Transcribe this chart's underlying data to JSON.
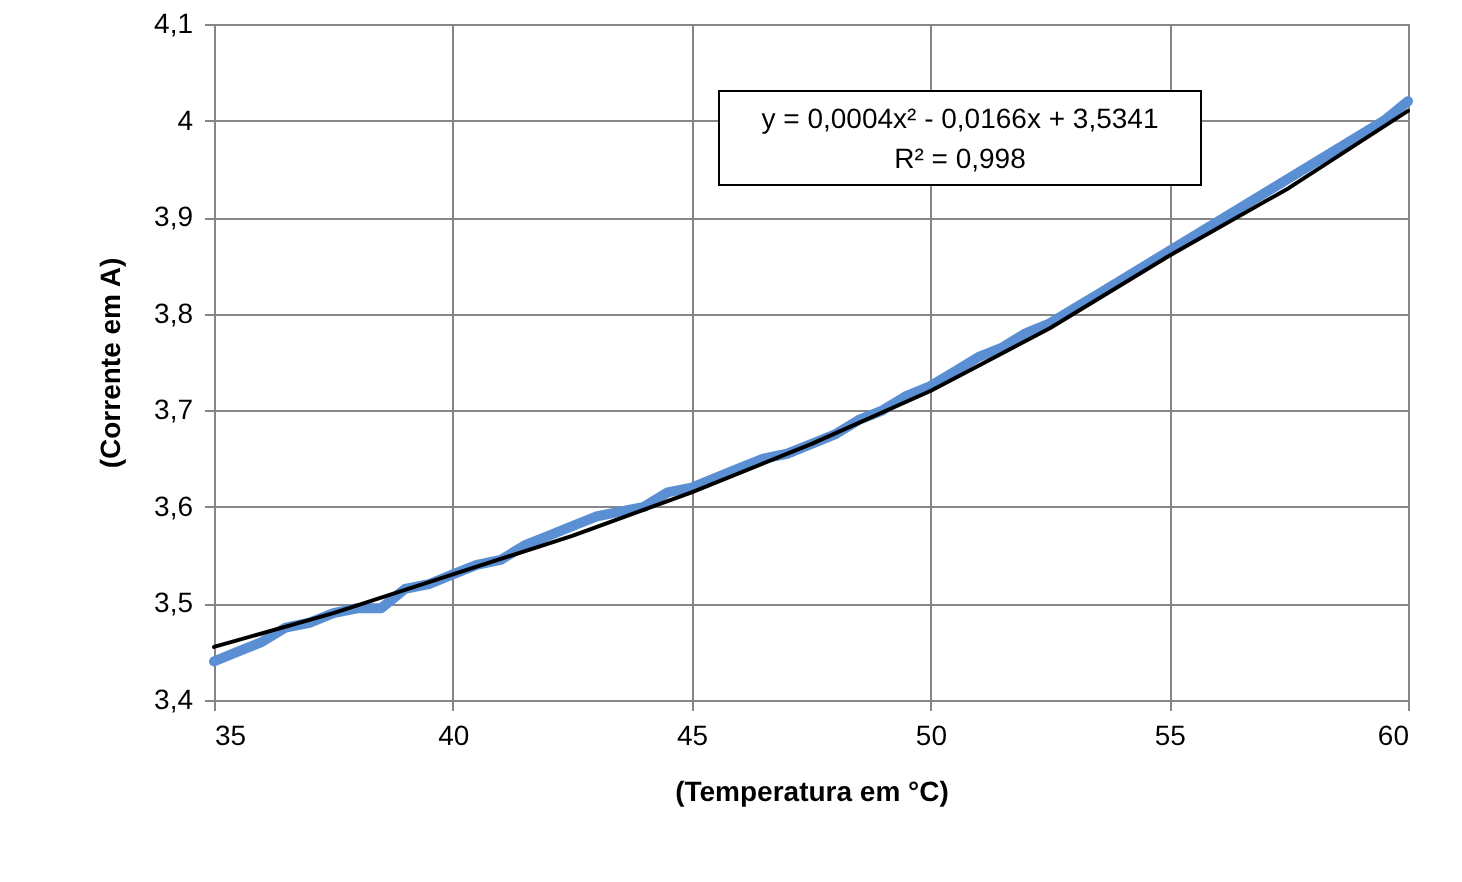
{
  "chart_data": {
    "type": "line",
    "xlabel": "(Temperatura em °C)",
    "ylabel": "(Corrente em A)",
    "xlim": [
      35,
      60
    ],
    "xticks": [
      35,
      40,
      45,
      50,
      55,
      60
    ],
    "ylim": [
      3.4,
      4.1
    ],
    "yticks": [
      {
        "value": 3.4,
        "label": "3,4"
      },
      {
        "value": 3.5,
        "label": "3,5"
      },
      {
        "value": 3.6,
        "label": "3,6"
      },
      {
        "value": 3.7,
        "label": "3,7"
      },
      {
        "value": 3.8,
        "label": "3,8"
      },
      {
        "value": 3.9,
        "label": "3,9"
      },
      {
        "value": 4,
        "label": "4"
      },
      {
        "value": 4.1,
        "label": "4,1"
      }
    ],
    "grid": true,
    "annotations": [
      "y = 0,0004x² - 0,0166x + 3,5341",
      "R² = 0,998"
    ],
    "series": [
      {
        "color": "#5b8fd4",
        "x": [
          35,
          35.5,
          36,
          36.5,
          37,
          37.5,
          38,
          38.5,
          39,
          39.5,
          40,
          40.5,
          41,
          41.5,
          42,
          42.5,
          43,
          43.5,
          44,
          44.5,
          45,
          45.5,
          46,
          46.5,
          47,
          47.5,
          48,
          48.5,
          49,
          49.5,
          50,
          50.5,
          51,
          51.5,
          52,
          52.5,
          53,
          53.5,
          54,
          54.5,
          55,
          55.5,
          56,
          56.5,
          57,
          57.5,
          58,
          58.5,
          59,
          59.5,
          60
        ],
        "values": [
          3.44,
          3.45,
          3.46,
          3.475,
          3.48,
          3.49,
          3.495,
          3.495,
          3.515,
          3.52,
          3.53,
          3.54,
          3.545,
          3.56,
          3.57,
          3.58,
          3.59,
          3.595,
          3.6,
          3.615,
          3.62,
          3.63,
          3.64,
          3.65,
          3.655,
          3.665,
          3.675,
          3.69,
          3.7,
          3.715,
          3.725,
          3.74,
          3.755,
          3.765,
          3.78,
          3.79,
          3.805,
          3.82,
          3.835,
          3.85,
          3.865,
          3.88,
          3.895,
          3.91,
          3.925,
          3.94,
          3.955,
          3.97,
          3.985,
          4.0,
          4.02
        ]
      },
      {
        "color": "#000000",
        "x": [
          35,
          37.5,
          40,
          42.5,
          45,
          47.5,
          50,
          52.5,
          55,
          57.5,
          60
        ],
        "values": [
          3.455,
          3.49,
          3.53,
          3.57,
          3.615,
          3.665,
          3.72,
          3.785,
          3.86,
          3.93,
          4.01
        ]
      }
    ]
  }
}
